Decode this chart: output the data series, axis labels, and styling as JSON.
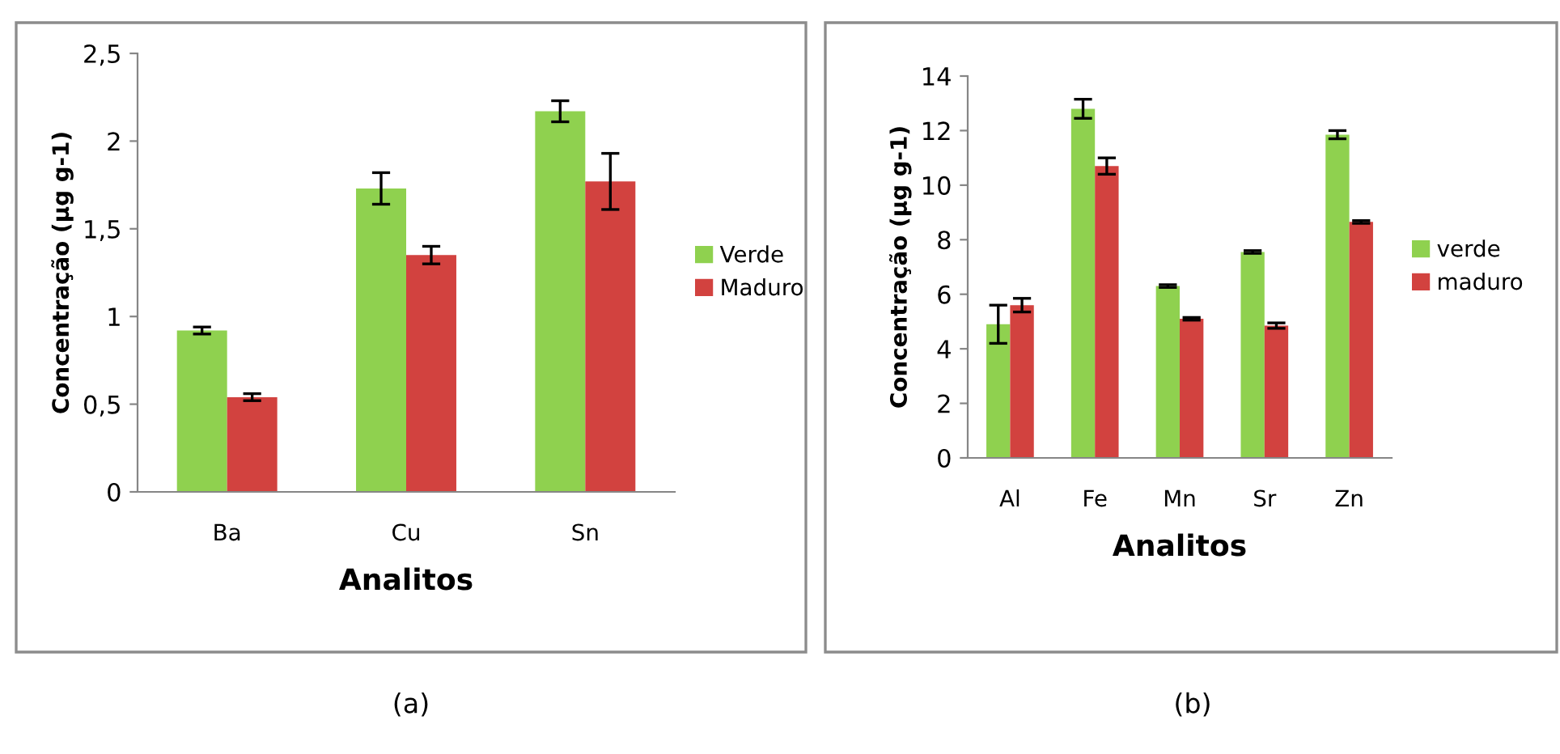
{
  "chart_data": [
    {
      "type": "bar",
      "xlabel": "Analitos",
      "ylabel": "Concentração (µg g-1)",
      "categories": [
        "Ba",
        "Cu",
        "Sn"
      ],
      "series": [
        {
          "name": "Verde",
          "color": "#8fd14f",
          "values": [
            0.92,
            1.73,
            2.17
          ],
          "errors": [
            0.02,
            0.09,
            0.06
          ]
        },
        {
          "name": "Maduro",
          "color": "#d2423f",
          "values": [
            0.54,
            1.35,
            1.77
          ],
          "errors": [
            0.02,
            0.05,
            0.16
          ]
        }
      ],
      "ylim": [
        0,
        2.5
      ],
      "yticks": [
        0,
        {
          "value": 0.5,
          "label": "0,5"
        },
        1,
        {
          "value": 1.5,
          "label": "1,5"
        },
        2,
        {
          "value": 2.5,
          "label": "2,5"
        }
      ],
      "grid": false,
      "legend": "right",
      "annotations": [
        "(a)"
      ]
    },
    {
      "type": "bar",
      "xlabel": "Analitos",
      "ylabel": "Concentração (µg g-1)",
      "categories": [
        "Al",
        "Fe",
        "Mn",
        "Sr",
        "Zn"
      ],
      "series": [
        {
          "name": "verde",
          "color": "#8fd14f",
          "values": [
            4.9,
            12.8,
            6.3,
            7.55,
            11.85
          ],
          "errors": [
            0.7,
            0.35,
            0.05,
            0.05,
            0.15
          ]
        },
        {
          "name": "maduro",
          "color": "#d2423f",
          "values": [
            5.6,
            10.7,
            5.1,
            4.85,
            8.65
          ],
          "errors": [
            0.25,
            0.3,
            0.05,
            0.1,
            0.05
          ]
        }
      ],
      "ylim": [
        0,
        14
      ],
      "yticks": [
        0,
        2,
        4,
        6,
        8,
        10,
        12,
        14
      ],
      "grid": false,
      "legend": "right",
      "annotations": [
        "(b)"
      ]
    }
  ]
}
